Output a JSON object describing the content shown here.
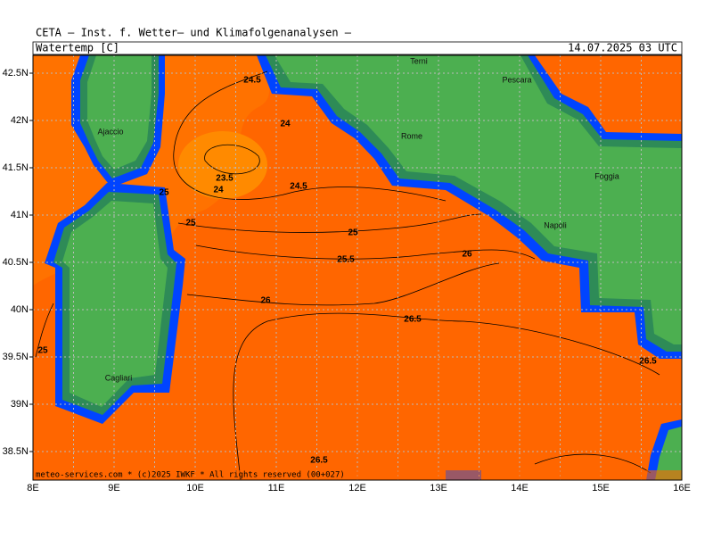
{
  "header": {
    "title": "CETA — Inst. f. Wetter— und Klimafolgenanalysen —",
    "variable": "Watertemp [C]",
    "valid_time": "14.07.2025 03 UTC"
  },
  "map": {
    "lon_ticks": [
      {
        "value": 8,
        "label": "8E"
      },
      {
        "value": 9,
        "label": "9E"
      },
      {
        "value": 10,
        "label": "10E"
      },
      {
        "value": 11,
        "label": "11E"
      },
      {
        "value": 12,
        "label": "12E"
      },
      {
        "value": 13,
        "label": "13E"
      },
      {
        "value": 14,
        "label": "14E"
      },
      {
        "value": 15,
        "label": "15E"
      },
      {
        "value": 16,
        "label": "16E"
      }
    ],
    "lat_ticks": [
      {
        "value": 42.5,
        "label": "42.5N"
      },
      {
        "value": 42,
        "label": "42N"
      },
      {
        "value": 41.5,
        "label": "41.5N"
      },
      {
        "value": 41,
        "label": "41N"
      },
      {
        "value": 40.5,
        "label": "40.5N"
      },
      {
        "value": 40,
        "label": "40N"
      },
      {
        "value": 39.5,
        "label": "39.5N"
      },
      {
        "value": 39,
        "label": "39N"
      },
      {
        "value": 38.5,
        "label": "38.5N"
      }
    ],
    "cities": [
      "Terni",
      "Pescara",
      "Ajaccio",
      "Rome",
      "Foggia",
      "Napoli",
      "Cagliari"
    ],
    "contour_labels": [
      24.5,
      24,
      23.5,
      24,
      24.5,
      25,
      25,
      25,
      25.5,
      26,
      26,
      26.5,
      26.5,
      25,
      26.5
    ],
    "footer": "meteo-services.com * (c)2025 IWKF * All rights reserved (00+027)"
  }
}
